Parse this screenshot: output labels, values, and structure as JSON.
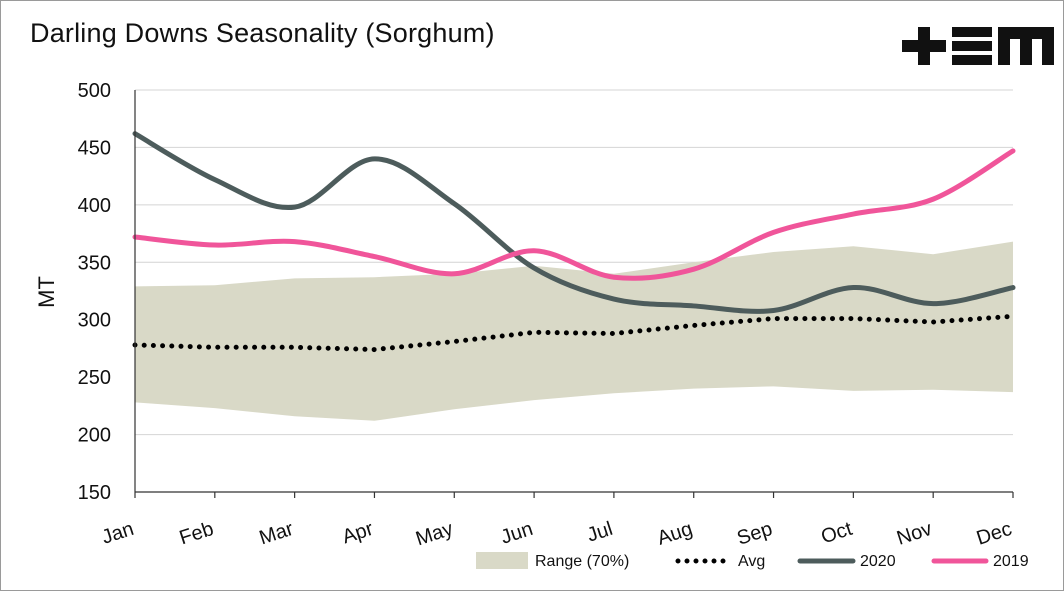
{
  "chart_data": {
    "type": "line",
    "title": "Darling Downs Seasonality (Sorghum)",
    "xlabel": "",
    "ylabel": "MT",
    "ylim": [
      150,
      500
    ],
    "yticks": [
      150,
      200,
      250,
      300,
      350,
      400,
      450,
      500
    ],
    "grid": true,
    "legend_position": "bottom-right",
    "categories": [
      "Jan",
      "Feb",
      "Mar",
      "Apr",
      "May",
      "Jun",
      "Jul",
      "Aug",
      "Sep",
      "Oct",
      "Nov",
      "Dec"
    ],
    "range": {
      "name": "Range (70%)",
      "color": "#d9d9c7",
      "upper": [
        329,
        330,
        336,
        337,
        340,
        347,
        340,
        350,
        359,
        364,
        357,
        368
      ],
      "lower": [
        228,
        223,
        216,
        212,
        222,
        230,
        236,
        240,
        242,
        238,
        239,
        237
      ]
    },
    "series": [
      {
        "name": "Avg",
        "color": "#000000",
        "style": "dotted",
        "values": [
          278,
          276,
          276,
          274,
          281,
          289,
          288,
          295,
          301,
          301,
          298,
          303
        ]
      },
      {
        "name": "2020",
        "color": "#4d5c5c",
        "style": "solid",
        "values": [
          462,
          422,
          398,
          440,
          401,
          345,
          318,
          312,
          308,
          328,
          314,
          328
        ]
      },
      {
        "name": "2019",
        "color": "#f0559a",
        "style": "solid",
        "values": [
          372,
          365,
          368,
          355,
          340,
          360,
          337,
          344,
          376,
          392,
          405,
          447
        ]
      }
    ]
  },
  "brand": {
    "logo_name": "+EM"
  }
}
